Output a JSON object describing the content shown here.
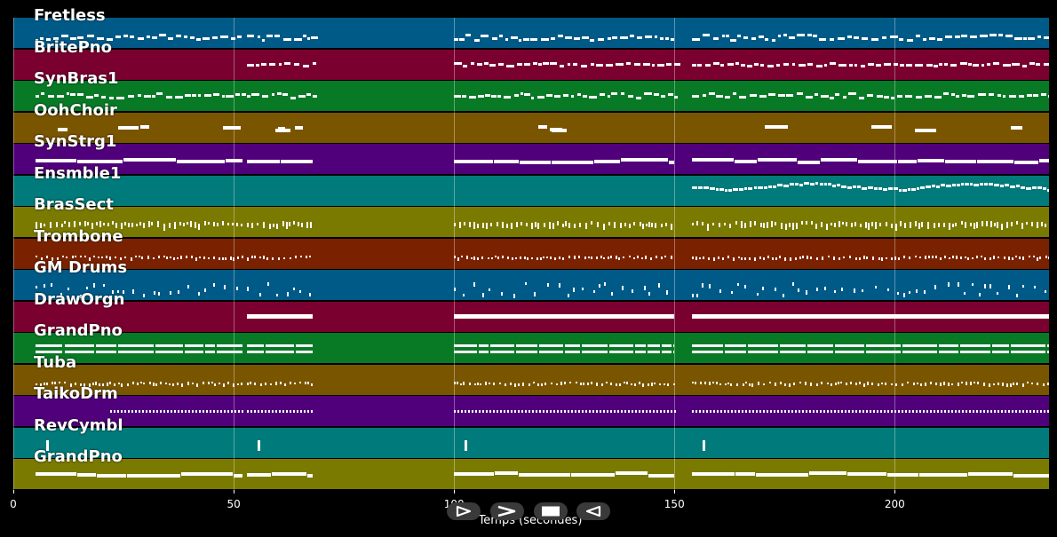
{
  "tracks": [
    {
      "name": "Fretless",
      "color": "#005a87",
      "pattern": "dots"
    },
    {
      "name": "BritePno",
      "color": "#7a0030",
      "pattern": "dots-sparse"
    },
    {
      "name": "SynBras1",
      "color": "#087a26",
      "pattern": "dots"
    },
    {
      "name": "OohChoir",
      "color": "#7a5500",
      "pattern": "clusters"
    },
    {
      "name": "SynStrg1",
      "color": "#50007a",
      "pattern": "bars"
    },
    {
      "name": "Ensmble1",
      "color": "#007a7a",
      "pattern": "wave"
    },
    {
      "name": "BrasSect",
      "color": "#7a7a00",
      "pattern": "ticks"
    },
    {
      "name": "Trombone",
      "color": "#7a2200",
      "pattern": "ticks-small"
    },
    {
      "name": "GM Drums",
      "color": "#005a87",
      "pattern": "scatter"
    },
    {
      "name": "DrawOrgn",
      "color": "#7a0030",
      "pattern": "bars-sparse"
    },
    {
      "name": "GrandPno",
      "color": "#087a26",
      "pattern": "double"
    },
    {
      "name": "Tuba",
      "color": "#7a5500",
      "pattern": "ticks-small"
    },
    {
      "name": "TaikoDrm",
      "color": "#50007a",
      "pattern": "dotted-line"
    },
    {
      "name": "RevCymbl",
      "color": "#007a7a",
      "pattern": "cymbal"
    },
    {
      "name": "GrandPno",
      "color": "#7a7a00",
      "pattern": "bars"
    }
  ],
  "axis": {
    "label": "Temps (secondes)",
    "min": 0,
    "max": 235,
    "ticks": [
      {
        "value": 0,
        "label": "0"
      },
      {
        "value": 50,
        "label": "50"
      },
      {
        "value": 100,
        "label": "100"
      },
      {
        "value": 150,
        "label": "150"
      },
      {
        "value": 200,
        "label": "200"
      }
    ]
  },
  "controls": [
    {
      "name": "play-button",
      "icon": "play-icon"
    },
    {
      "name": "fast-forward-button",
      "icon": "fast-forward-icon"
    },
    {
      "name": "stop-button",
      "icon": "stop-icon"
    },
    {
      "name": "rewind-button",
      "icon": "rewind-icon"
    }
  ],
  "sections": [
    [
      5,
      52
    ],
    [
      53,
      68
    ],
    [
      100,
      150
    ],
    [
      154,
      236
    ]
  ]
}
